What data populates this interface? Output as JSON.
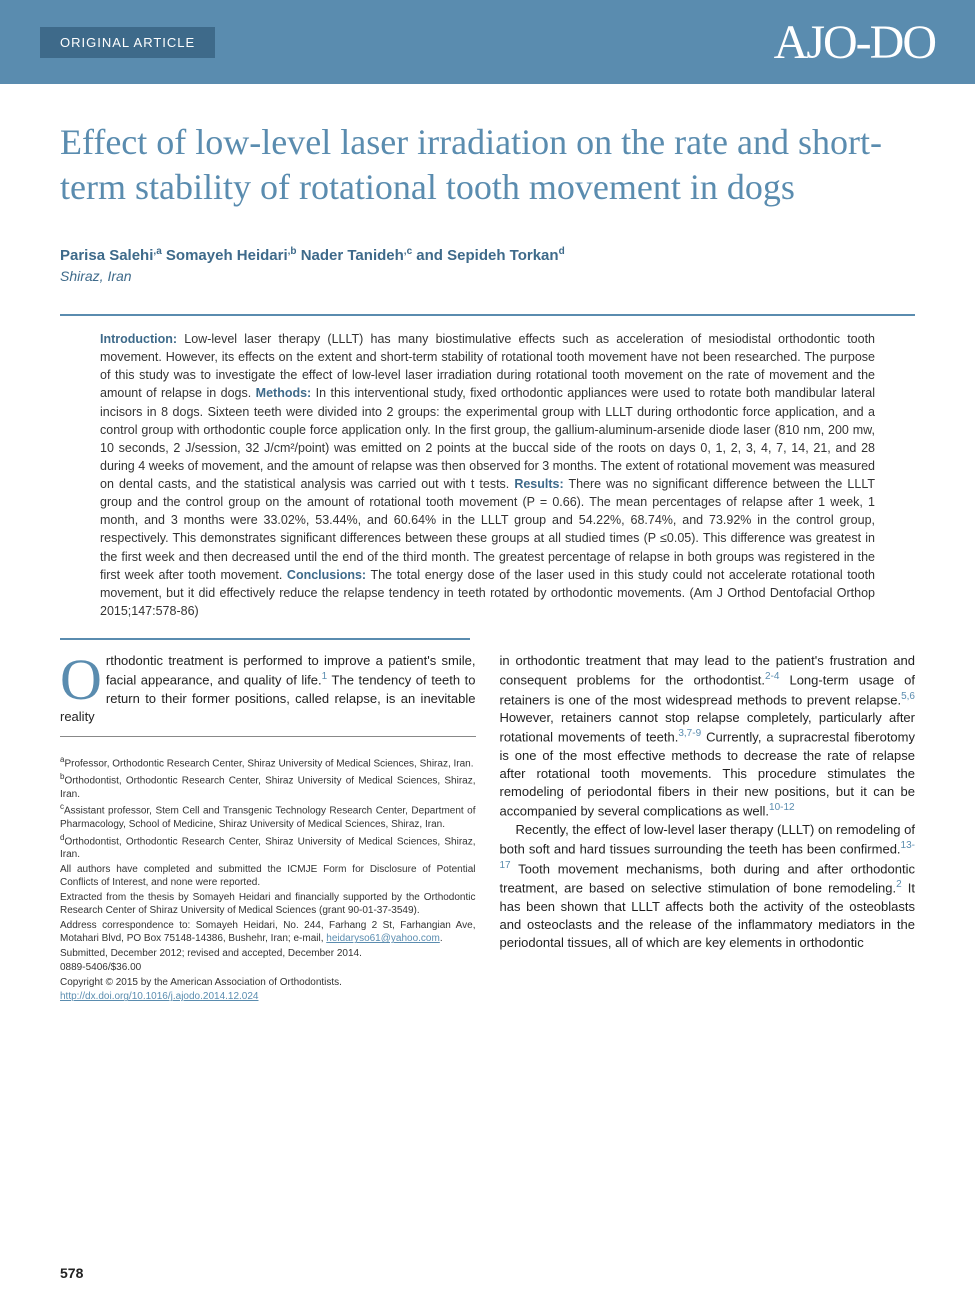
{
  "header": {
    "article_type": "ORIGINAL ARTICLE",
    "journal_logo": "AJO-DO"
  },
  "title": "Effect of low-level laser irradiation on the rate and short-term stability of rotational tooth movement in dogs",
  "authors": [
    {
      "name": "Parisa Salehi",
      "sup": "a"
    },
    {
      "name": "Somayeh Heidari",
      "sup": "b"
    },
    {
      "name": "Nader Tanideh",
      "sup": "c"
    },
    {
      "name": "Sepideh Torkan",
      "sup": "d"
    }
  ],
  "location": "Shiraz, Iran",
  "abstract": {
    "intro_label": "Introduction:",
    "intro": " Low-level laser therapy (LLLT) has many biostimulative effects such as acceleration of mesiodistal orthodontic tooth movement. However, its effects on the extent and short-term stability of rotational tooth movement have not been researched. The purpose of this study was to investigate the effect of low-level laser irradiation during rotational tooth movement on the rate of movement and the amount of relapse in dogs. ",
    "methods_label": "Methods:",
    "methods": " In this interventional study, fixed orthodontic appliances were used to rotate both mandibular lateral incisors in 8 dogs. Sixteen teeth were divided into 2 groups: the experimental group with LLLT during orthodontic force application, and a control group with orthodontic couple force application only. In the first group, the gallium-aluminum-arsenide diode laser (810 nm, 200 mw, 10 seconds, 2 J/session, 32 J/cm²/point) was emitted on 2 points at the buccal side of the roots on days 0, 1, 2, 3, 4, 7, 14, 21, and 28 during 4 weeks of movement, and the amount of relapse was then observed for 3 months. The extent of rotational movement was measured on dental casts, and the statistical analysis was carried out with t tests. ",
    "results_label": "Results:",
    "results": " There was no significant difference between the LLLT group and the control group on the amount of rotational tooth movement (P = 0.66). The mean percentages of relapse after 1 week, 1 month, and 3 months were 33.02%, 53.44%, and 60.64% in the LLLT group and 54.22%, 68.74%, and 73.92% in the control group, respectively. This demonstrates significant differences between these groups at all studied times (P ≤0.05). This difference was greatest in the first week and then decreased until the end of the third month. The greatest percentage of relapse in both groups was registered in the first week after tooth movement. ",
    "conclusions_label": "Conclusions:",
    "conclusions": " The total energy dose of the laser used in this study could not accelerate rotational tooth movement, but it did effectively reduce the relapse tendency in teeth rotated by orthodontic movements. ",
    "citation": "(Am J Orthod Dentofacial Orthop 2015;147:578-86)"
  },
  "body": {
    "col1_para1_pre": "rthodontic treatment is performed to improve a patient's smile, facial appearance, and quality of life.",
    "col1_para1_post": " The tendency of teeth to return to their former positions, called relapse, is an inevitable reality",
    "col2_para1_pre": "in orthodontic treatment that may lead to the patient's frustration and consequent problems for the orthodontist.",
    "col2_para1_mid": " Long-term usage of retainers is one of the most widespread methods to prevent relapse.",
    "col2_para1_mid2": " However, retainers cannot stop relapse completely, particularly after rotational movements of teeth.",
    "col2_para1_post": " Currently, a supracrestal fiberotomy is one of the most effective methods to decrease the rate of relapse after rotational tooth movements. This procedure stimulates the remodeling of periodontal fibers in their new positions, but it can be accompanied by several complications as well.",
    "col2_para2_pre": "Recently, the effect of low-level laser therapy (LLLT) on remodeling of both soft and hard tissues surrounding the teeth has been confirmed.",
    "col2_para2_mid": " Tooth movement mechanisms, both during and after orthodontic treatment, are based on selective stimulation of bone remodeling.",
    "col2_para2_post": " It has been shown that LLLT affects both the activity of the osteoblasts and osteoclasts and the release of the inflammatory mediators in the periodontal tissues, all of which are key elements in orthodontic",
    "refs": {
      "r1": "1",
      "r2_4": "2-4",
      "r5_6": "5,6",
      "r3_7_9": "3,7-9",
      "r10_12": "10-12",
      "r13_17": "13-17",
      "r2": "2"
    }
  },
  "footnotes": {
    "a": "Professor, Orthodontic Research Center, Shiraz University of Medical Sciences, Shiraz, Iran.",
    "b": "Orthodontist, Orthodontic Research Center, Shiraz University of Medical Sciences, Shiraz, Iran.",
    "c": "Assistant professor, Stem Cell and Transgenic Technology Research Center, Department of Pharmacology, School of Medicine, Shiraz University of Medical Sciences, Shiraz, Iran.",
    "d": "Orthodontist, Orthodontic Research Center, Shiraz University of Medical Sciences, Shiraz, Iran.",
    "disclosure": "All authors have completed and submitted the ICMJE Form for Disclosure of Potential Conflicts of Interest, and none were reported.",
    "funding": "Extracted from the thesis by Somayeh Heidari and financially supported by the Orthodontic Research Center of Shiraz University of Medical Sciences (grant 90-01-37-3549).",
    "correspondence_pre": "Address correspondence to: Somayeh Heidari, No. 244, Farhang 2 St, Farhangian Ave, Motahari Blvd, PO Box 75148-14386, Bushehr, Iran; e-mail, ",
    "email": "heidaryso61@yahoo.com",
    "submitted": "Submitted, December 2012; revised and accepted, December 2014.",
    "issn": "0889-5406/$36.00",
    "copyright": "Copyright © 2015 by the American Association of Orthodontists.",
    "doi": "http://dx.doi.org/10.1016/j.ajodo.2014.12.024"
  },
  "page_number": "578",
  "colors": {
    "header_bg": "#5a8caf",
    "header_badge": "#3e6a8a",
    "title_color": "#5a8caf",
    "author_color": "#3e6a8a",
    "link_color": "#5a8caf",
    "rule_color": "#5a8caf"
  }
}
